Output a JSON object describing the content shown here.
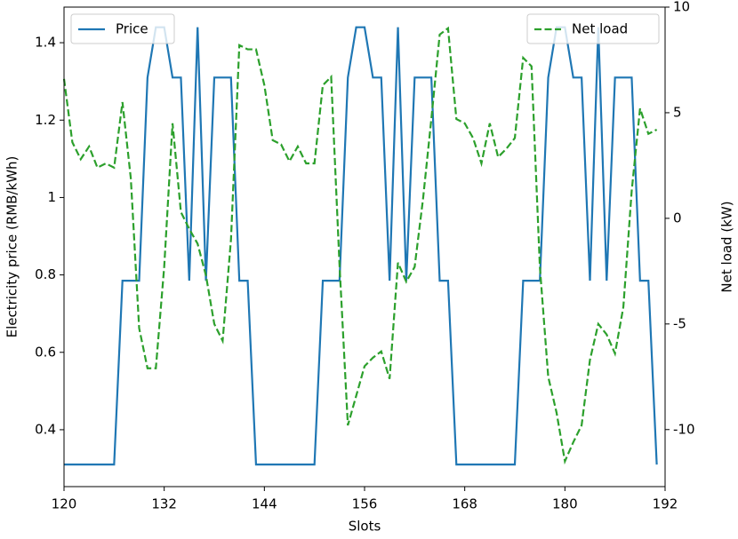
{
  "chart_data": {
    "type": "line",
    "x_label": "Slots",
    "y_label": "Electricity price (RMB/kWh)",
    "y2_label": "Net load (kW)",
    "x": [
      120,
      121,
      122,
      123,
      124,
      125,
      126,
      127,
      128,
      129,
      130,
      131,
      132,
      133,
      134,
      135,
      136,
      137,
      138,
      139,
      140,
      141,
      142,
      143,
      144,
      145,
      146,
      147,
      148,
      149,
      150,
      151,
      152,
      153,
      154,
      155,
      156,
      157,
      158,
      159,
      160,
      161,
      162,
      163,
      164,
      165,
      166,
      167,
      168,
      169,
      170,
      171,
      172,
      173,
      174,
      175,
      176,
      177,
      178,
      179,
      180,
      181,
      182,
      183,
      184,
      185,
      186,
      187,
      188,
      189,
      190,
      191
    ],
    "series": [
      {
        "name": "Price",
        "color": "#1f77b4",
        "dashed": false,
        "legend": "upper left",
        "values": [
          0.31,
          0.31,
          0.31,
          0.31,
          0.31,
          0.31,
          0.31,
          0.785,
          0.785,
          0.785,
          1.31,
          1.44,
          1.44,
          1.31,
          1.31,
          0.785,
          1.44,
          0.785,
          1.31,
          1.31,
          1.31,
          0.785,
          0.785,
          0.31,
          0.31,
          0.31,
          0.31,
          0.31,
          0.31,
          0.31,
          0.31,
          0.785,
          0.785,
          0.785,
          1.31,
          1.44,
          1.44,
          1.31,
          1.31,
          0.785,
          1.44,
          0.785,
          1.31,
          1.31,
          1.31,
          0.785,
          0.785,
          0.31,
          0.31,
          0.31,
          0.31,
          0.31,
          0.31,
          0.31,
          0.31,
          0.785,
          0.785,
          0.785,
          1.31,
          1.44,
          1.44,
          1.31,
          1.31,
          0.785,
          1.44,
          0.785,
          1.31,
          1.31,
          1.31,
          0.785,
          0.785,
          0.31
        ]
      },
      {
        "name": "Net load",
        "color": "#2ca02c",
        "dashed": true,
        "axis": "y2",
        "legend": "upper right",
        "values": [
          6.6,
          3.6,
          2.8,
          3.4,
          2.4,
          2.6,
          2.4,
          5.5,
          1.9,
          -5.2,
          -7.1,
          -7.1,
          -2.3,
          4.5,
          0.3,
          -0.5,
          -1.2,
          -2.7,
          -5.0,
          -5.8,
          -1.0,
          8.2,
          8.0,
          8.0,
          6.3,
          3.7,
          3.5,
          2.7,
          3.4,
          2.6,
          2.6,
          6.3,
          6.7,
          -2.2,
          -9.8,
          -8.4,
          -7.0,
          -6.6,
          -6.3,
          -7.6,
          -2.1,
          -3.0,
          -2.3,
          0.9,
          4.7,
          8.7,
          9.0,
          4.7,
          4.5,
          3.8,
          2.6,
          4.5,
          2.9,
          3.3,
          3.8,
          7.6,
          7.2,
          -2.3,
          -7.5,
          -9.2,
          -11.5,
          -10.6,
          -9.8,
          -6.7,
          -5.0,
          -5.5,
          -6.4,
          -4.2,
          1.3,
          5.2,
          4.0,
          4.2
        ]
      }
    ],
    "xlim": [
      120,
      192
    ],
    "xticks": [
      120,
      132,
      144,
      156,
      168,
      180,
      192
    ],
    "ylim": [
      0.253,
      1.492
    ],
    "yticks": [
      0.4,
      0.6,
      0.8,
      1.0,
      1.2,
      1.4
    ],
    "y2lim": [
      -12.7,
      10
    ],
    "y2ticks": [
      -10,
      -5,
      0,
      5,
      10
    ]
  }
}
